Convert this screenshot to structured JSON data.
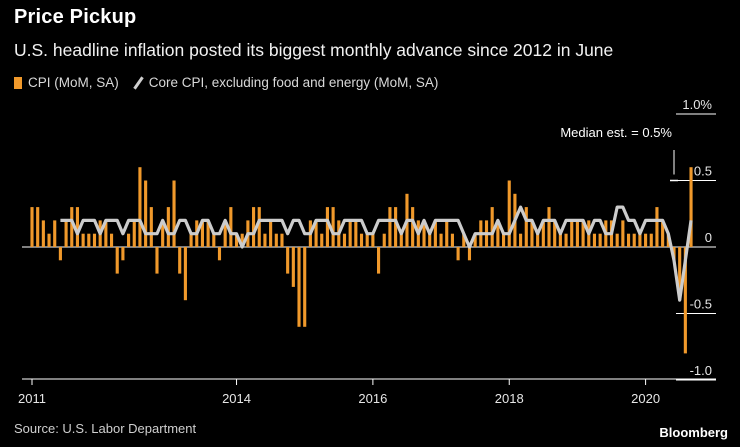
{
  "header": {
    "title": "Price Pickup",
    "subtitle": "U.S. headline inflation posted its biggest monthly advance since 2012 in June"
  },
  "legend": {
    "series1": "CPI (MoM, SA)",
    "series2": "Core CPI, excluding food and energy (MoM, SA)"
  },
  "footer": {
    "source": "Source: U.S. Labor Department",
    "brand": "Bloomberg"
  },
  "colors": {
    "background": "#000000",
    "cpi_bar": "#f0992b",
    "core_line": "#cccccc",
    "axis": "#ffffff"
  },
  "chart_data": {
    "type": "bar",
    "title": "Price Pickup",
    "subtitle": "U.S. headline inflation posted its biggest monthly advance since 2012 in June",
    "xlabel": "",
    "ylabel": "",
    "x_start": "2011-01",
    "x_end": "2020-06",
    "ylim": [
      -1.1,
      1.1
    ],
    "y_ticks": [
      1.0,
      0.5,
      0,
      -0.5,
      -1.0
    ],
    "y_tick_labels": [
      "1.0%",
      "0.5",
      "0",
      "-0.5",
      "-1.0"
    ],
    "x_ticks": [
      "2011-01",
      "2014-01",
      "2016-01",
      "2018-01",
      "2020-01"
    ],
    "x_tick_labels": [
      "2011",
      "2014",
      "2016",
      "2018",
      "2020"
    ],
    "annotation": {
      "text": "Median est. = 0.5%",
      "month": "2020-06",
      "value": 0.5
    },
    "series": [
      {
        "name": "CPI (MoM, SA)",
        "type": "bar",
        "start": "2011-01",
        "values": [
          0.3,
          0.3,
          0.2,
          0.1,
          0.2,
          -0.1,
          0.2,
          0.3,
          0.3,
          0.1,
          0.1,
          0.1,
          0.2,
          0.2,
          0.1,
          -0.2,
          -0.1,
          0.1,
          0.2,
          0.6,
          0.5,
          0.3,
          -0.2,
          0.2,
          0.3,
          0.5,
          -0.2,
          -0.4,
          0.1,
          0.2,
          0.2,
          0.2,
          0.1,
          -0.1,
          0.2,
          0.3,
          0.1,
          0.1,
          0.2,
          0.3,
          0.3,
          0.1,
          0.2,
          0.1,
          0.1,
          -0.2,
          -0.3,
          -0.6,
          -0.6,
          0.2,
          0.2,
          0.1,
          0.3,
          0.3,
          0.2,
          0.1,
          0.2,
          0.2,
          0.1,
          0.1,
          0.1,
          -0.2,
          0.1,
          0.3,
          0.3,
          0.1,
          0.4,
          0.3,
          0.2,
          0.2,
          0.1,
          0.2,
          0.1,
          0.2,
          0.1,
          -0.1,
          0.1,
          -0.1,
          0.1,
          0.2,
          0.2,
          0.3,
          0.2,
          0.1,
          0.5,
          0.4,
          0.1,
          0.3,
          0.2,
          0.1,
          0.2,
          0.3,
          0.2,
          0.1,
          0.1,
          0.2,
          0.2,
          0.2,
          0.2,
          0.1,
          0.1,
          0.2,
          0.2,
          0.1,
          0.2,
          0.1,
          0.1,
          0.1,
          0.1,
          0.1,
          0.3,
          0.2,
          0.1,
          -0.1,
          -0.4,
          -0.8,
          0.6
        ]
      },
      {
        "name": "Core CPI, excluding food and energy (MoM, SA)",
        "type": "line",
        "start": "2011-06",
        "values": [
          0.2,
          0.2,
          0.2,
          0.1,
          0.2,
          0.2,
          0.2,
          0.1,
          0.2,
          0.2,
          0.2,
          0.1,
          0.2,
          0.2,
          0.2,
          0.1,
          0.1,
          0.1,
          0.2,
          0.1,
          0.1,
          0.2,
          0.2,
          0.1,
          0.1,
          0.2,
          0.2,
          0.1,
          0.1,
          0.2,
          0.1,
          0.1,
          0.0,
          0.1,
          0.1,
          0.2,
          0.2,
          0.2,
          0.2,
          0.2,
          0.1,
          0.2,
          0.2,
          0.1,
          0.1,
          0.2,
          0.2,
          0.2,
          0.1,
          0.1,
          0.2,
          0.2,
          0.2,
          0.2,
          0.1,
          0.1,
          0.2,
          0.2,
          0.2,
          0.2,
          0.1,
          0.2,
          0.2,
          0.1,
          0.2,
          0.1,
          0.2,
          0.2,
          0.2,
          0.2,
          0.2,
          0.1,
          0.0,
          0.1,
          0.1,
          0.1,
          0.1,
          0.2,
          0.1,
          0.1,
          0.2,
          0.3,
          0.2,
          0.2,
          0.1,
          0.2,
          0.2,
          0.2,
          0.1,
          0.2,
          0.2,
          0.2,
          0.2,
          0.1,
          0.2,
          0.2,
          0.1,
          0.1,
          0.3,
          0.3,
          0.2,
          0.2,
          0.1,
          0.2,
          0.2,
          0.2,
          0.2,
          0.1,
          -0.1,
          -0.4,
          -0.1,
          0.2
        ]
      }
    ]
  }
}
